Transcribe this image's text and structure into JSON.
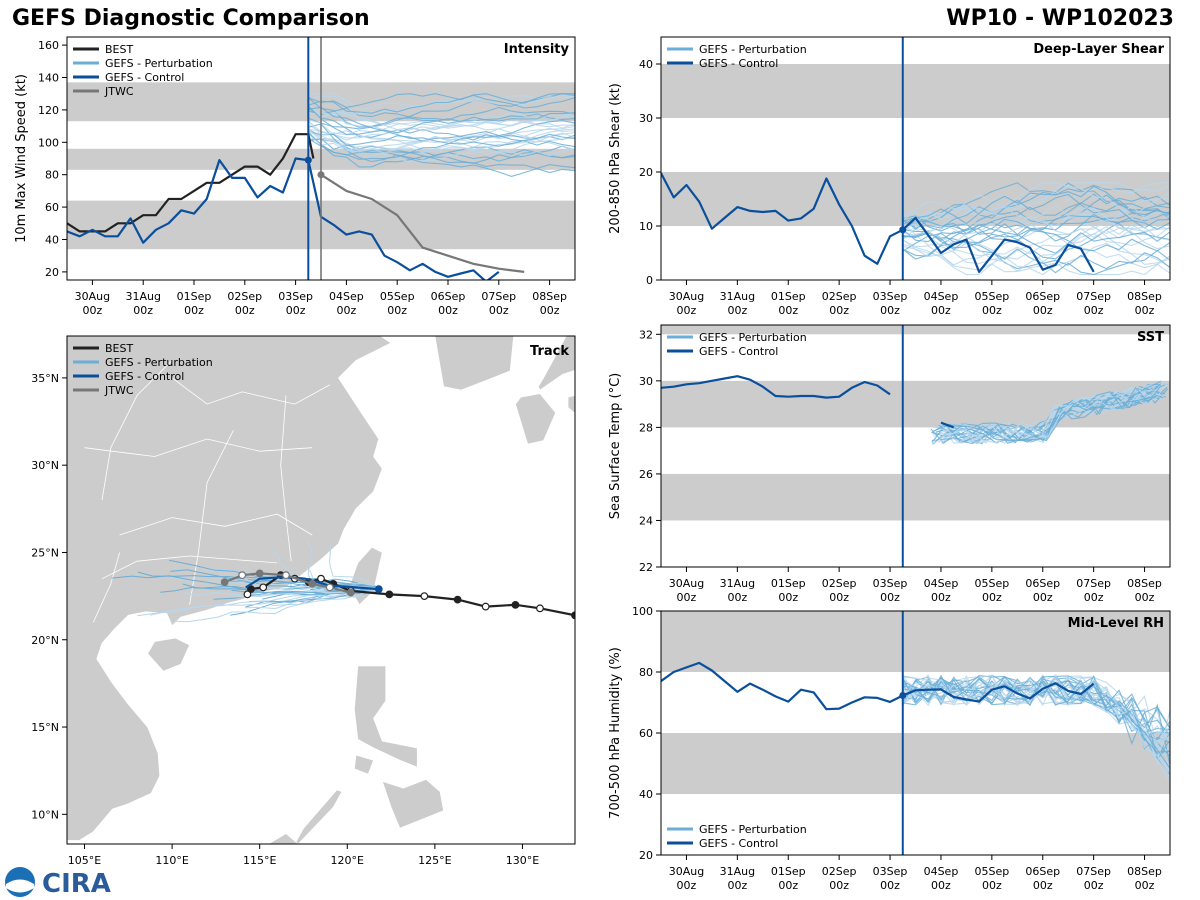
{
  "header": {
    "title_left": "GEFS Diagnostic Comparison",
    "title_right": "WP10 - WP102023"
  },
  "logo_text": "CIRA",
  "colors": {
    "best": "#222222",
    "perturbation": "#6baed6",
    "perturbation_light": "#b9d7ec",
    "control": "#0b4f9c",
    "jtwc": "#777777",
    "band": "#cccccc",
    "land": "#cccccc"
  },
  "time_axis": {
    "tick_labels": [
      "30Aug\n00z",
      "31Aug\n00z",
      "01Sep\n00z",
      "02Sep\n00z",
      "03Sep\n00z",
      "04Sep\n00z",
      "05Sep\n00z",
      "06Sep\n00z",
      "07Sep\n00z",
      "08Sep\n00z"
    ],
    "init_time_days": 4.25,
    "jtwc_line_days": 4.5
  },
  "chart_data": [
    {
      "id": "intensity",
      "type": "line",
      "title": "Intensity",
      "ylabel": "10m Max Wind Speed (kt)",
      "ylim": [
        15,
        165
      ],
      "xlim": [
        -0.5,
        9.5
      ],
      "yticks": [
        20,
        40,
        60,
        80,
        100,
        120,
        140,
        160
      ],
      "bands": [
        [
          34,
          64
        ],
        [
          83,
          96
        ],
        [
          113,
          137
        ]
      ],
      "legend": [
        "BEST",
        "GEFS - Perturbation",
        "GEFS - Control",
        "JTWC"
      ],
      "series": [
        {
          "name": "BEST",
          "x": [
            -0.5,
            -0.25,
            0,
            0.25,
            0.5,
            0.75,
            1,
            1.25,
            1.5,
            1.75,
            2,
            2.25,
            2.5,
            2.75,
            3,
            3.25,
            3.5,
            3.75,
            4,
            4.25,
            4.35
          ],
          "y": [
            50,
            45,
            45,
            45,
            50,
            50,
            55,
            55,
            65,
            65,
            70,
            75,
            75,
            80,
            85,
            85,
            80,
            90,
            105,
            105,
            90
          ]
        },
        {
          "name": "GEFS - Control",
          "x": [
            -0.5,
            -0.25,
            0,
            0.25,
            0.5,
            0.75,
            1,
            1.25,
            1.5,
            1.75,
            2,
            2.25,
            2.5,
            2.75,
            3,
            3.25,
            3.5,
            3.75,
            4,
            4.25,
            4.5,
            4.75,
            5,
            5.25,
            5.5,
            5.75,
            6,
            6.25,
            6.5,
            6.75,
            7,
            7.25,
            7.5,
            7.75,
            8
          ],
          "y": [
            45,
            42,
            46,
            42,
            42,
            53,
            38,
            46,
            50,
            58,
            56,
            65,
            89,
            78,
            78,
            66,
            73,
            69,
            90,
            89,
            54,
            49,
            43,
            45,
            43,
            30,
            26,
            21,
            25,
            20,
            17,
            19,
            21,
            14,
            20
          ]
        },
        {
          "name": "JTWC",
          "x": [
            4.5,
            5,
            5.5,
            6,
            6.5,
            7,
            7.5,
            8,
            8.5
          ],
          "y": [
            80,
            70,
            65,
            55,
            35,
            30,
            25,
            22,
            20
          ]
        }
      ]
    },
    {
      "id": "shear",
      "type": "line",
      "title": "Deep-Layer Shear",
      "ylabel": "200-850 hPa Shear (kt)",
      "ylim": [
        0,
        45
      ],
      "xlim": [
        -0.5,
        9.5
      ],
      "yticks": [
        0,
        10,
        20,
        30,
        40
      ],
      "bands": [
        [
          10,
          20
        ],
        [
          30,
          40
        ]
      ],
      "legend": [
        "GEFS - Perturbation",
        "GEFS - Control"
      ],
      "series": [
        {
          "name": "GEFS - Control",
          "x": [
            -0.5,
            -0.25,
            0,
            0.25,
            0.5,
            0.75,
            1,
            1.25,
            1.5,
            1.75,
            2,
            2.25,
            2.5,
            2.75,
            3,
            3.25,
            3.5,
            3.75,
            4,
            4.25,
            4.5,
            4.75,
            5,
            5.25,
            5.5,
            5.75,
            6,
            6.25,
            6.5,
            6.75,
            7,
            7.25,
            7.5,
            7.75,
            8
          ],
          "y": [
            19.8,
            15.3,
            17.6,
            14.5,
            9.5,
            11.5,
            13.5,
            12.8,
            12.6,
            12.8,
            11,
            11.4,
            13.2,
            18.8,
            14,
            10,
            4.5,
            3,
            8.1,
            9.3,
            11.5,
            8.3,
            5,
            6.6,
            7.5,
            1.5,
            4.5,
            7.5,
            7,
            6,
            1.9,
            2.8,
            6.5,
            5.8,
            1.5
          ]
        }
      ]
    },
    {
      "id": "sst",
      "type": "line",
      "title": "SST",
      "ylabel": "Sea Surface Temp (°C)",
      "ylim": [
        22,
        32.4
      ],
      "xlim": [
        -0.5,
        9.5
      ],
      "yticks": [
        22,
        24,
        26,
        28,
        30,
        32
      ],
      "bands": [
        [
          24,
          26
        ],
        [
          28,
          30
        ],
        [
          32,
          32.4
        ]
      ],
      "legend": [
        "GEFS - Perturbation",
        "GEFS - Control"
      ],
      "series": [
        {
          "name": "GEFS - Control",
          "x": [
            -0.5,
            -0.25,
            0,
            0.25,
            0.5,
            0.75,
            1,
            1.25,
            1.5,
            1.75,
            2,
            2.25,
            2.5,
            2.75,
            3,
            3.25,
            3.5,
            3.75,
            4
          ],
          "y": [
            29.7,
            29.75,
            29.85,
            29.9,
            30,
            30.1,
            30.2,
            30.05,
            29.75,
            29.35,
            29.32,
            29.35,
            29.35,
            29.28,
            29.32,
            29.7,
            29.95,
            29.8,
            29.42
          ]
        },
        {
          "name": "GEFS - Control (segment 2)",
          "x": [
            5,
            5.25
          ],
          "y": [
            28.2,
            28.0
          ]
        }
      ]
    },
    {
      "id": "rh",
      "type": "line",
      "title": "Mid-Level RH",
      "ylabel": "700-500 hPa Humidity (%)",
      "ylim": [
        20,
        100
      ],
      "xlim": [
        -0.5,
        9.5
      ],
      "yticks": [
        20,
        40,
        60,
        80,
        100
      ],
      "bands": [
        [
          40,
          60
        ],
        [
          80,
          100
        ]
      ],
      "legend": [
        "GEFS - Perturbation",
        "GEFS - Control"
      ],
      "series": [
        {
          "name": "GEFS - Control",
          "x": [
            -0.5,
            -0.25,
            0,
            0.25,
            0.5,
            0.75,
            1,
            1.25,
            1.5,
            1.75,
            2,
            2.25,
            2.5,
            2.75,
            3,
            3.25,
            3.5,
            3.75,
            4,
            4.25,
            4.5,
            4.75,
            5,
            5.25,
            5.5,
            5.75,
            6,
            6.25,
            6.5,
            6.75,
            7,
            7.25,
            7.5,
            7.75,
            8
          ],
          "y": [
            77,
            80,
            81.5,
            83,
            80.5,
            77,
            73.5,
            76.2,
            74.2,
            72,
            70.3,
            74.2,
            73.3,
            67.8,
            68,
            70,
            71.7,
            71.5,
            70.2,
            72.3,
            74,
            74.2,
            74.3,
            71.8,
            71,
            70.3,
            74.2,
            75.3,
            73,
            71.3,
            74.5,
            76.3,
            73.8,
            72.8,
            76.2
          ]
        }
      ]
    },
    {
      "id": "track",
      "type": "scatter",
      "title": "Track",
      "xlim": [
        104,
        133
      ],
      "ylim": [
        8.3,
        37.4
      ],
      "x_tick_labels": [
        "105°E",
        "110°E",
        "115°E",
        "120°E",
        "125°E",
        "130°E"
      ],
      "x_tick_values": [
        105,
        110,
        115,
        120,
        125,
        130
      ],
      "y_tick_labels": [
        "10°N",
        "15°N",
        "20°N",
        "25°N",
        "30°N",
        "35°N"
      ],
      "y_tick_values": [
        10,
        15,
        20,
        25,
        30,
        35
      ],
      "legend": [
        "BEST",
        "GEFS - Perturbation",
        "GEFS - Control",
        "JTWC"
      ],
      "series": [
        {
          "name": "BEST",
          "lon": [
            133,
            131,
            129.6,
            127.9,
            126.3,
            124.4,
            122.4,
            120.2,
            119.2,
            118.5,
            117.8,
            117,
            116.2,
            115.2,
            114.5,
            114.3
          ],
          "lat": [
            21.4,
            21.8,
            22.0,
            21.9,
            22.3,
            22.5,
            22.6,
            22.8,
            23.2,
            23.5,
            23.3,
            23.5,
            23.7,
            23.0,
            22.9,
            22.6
          ]
        },
        {
          "name": "GEFS - Control",
          "lon": [
            121.8,
            120.5,
            119,
            117.6,
            116.5,
            115,
            114.2
          ],
          "lat": [
            22.9,
            23.0,
            23.1,
            23.5,
            23.6,
            23.5,
            23.0
          ]
        },
        {
          "name": "JTWC",
          "lon": [
            120.2,
            119,
            118,
            116.5,
            115,
            114,
            113
          ],
          "lat": [
            22.7,
            23.0,
            23.2,
            23.7,
            23.8,
            23.7,
            23.3
          ]
        }
      ]
    }
  ]
}
